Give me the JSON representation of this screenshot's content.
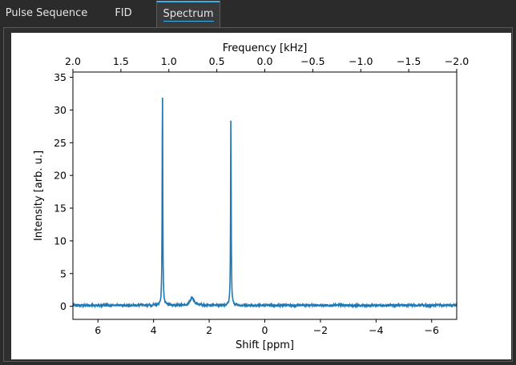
{
  "tabs": [
    {
      "label": "Pulse Sequence",
      "active": false
    },
    {
      "label": "FID",
      "active": false
    },
    {
      "label": "Spectrum",
      "active": true
    }
  ],
  "colors": {
    "accent": "#3daee9",
    "series": "#1f77b4"
  },
  "chart_data": {
    "type": "line",
    "title": "",
    "xlabel": "Shift [ppm]",
    "ylabel": "Intensity [arb. u.]",
    "secondary_xlabel": "Frequency [kHz]",
    "xlim": [
      6.9,
      -6.9
    ],
    "ylim": [
      -2,
      35.8
    ],
    "secondary_xlim": [
      2.0,
      -2.0
    ],
    "x_ticks": [
      6,
      4,
      2,
      0,
      -2,
      -4,
      -6
    ],
    "x_tick_labels": [
      "6",
      "4",
      "2",
      "0",
      "−2",
      "−4",
      "−6"
    ],
    "y_ticks": [
      0,
      5,
      10,
      15,
      20,
      25,
      30,
      35
    ],
    "y_tick_labels": [
      "0",
      "5",
      "10",
      "15",
      "20",
      "25",
      "30",
      "35"
    ],
    "secondary_x_ticks": [
      2.0,
      1.5,
      1.0,
      0.5,
      0.0,
      -0.5,
      -1.0,
      -1.5,
      -2.0
    ],
    "secondary_x_tick_labels": [
      "2.0",
      "1.5",
      "1.0",
      "0.5",
      "0.0",
      "−0.5",
      "−1.0",
      "−1.5",
      "−2.0"
    ],
    "grid": false,
    "series": [
      {
        "baseline": 0.15,
        "peaks": [
          {
            "x": 3.68,
            "y": 34.0
          },
          {
            "x": 2.62,
            "y": 1.1
          },
          {
            "x": 1.22,
            "y": 29.3
          }
        ]
      }
    ]
  }
}
